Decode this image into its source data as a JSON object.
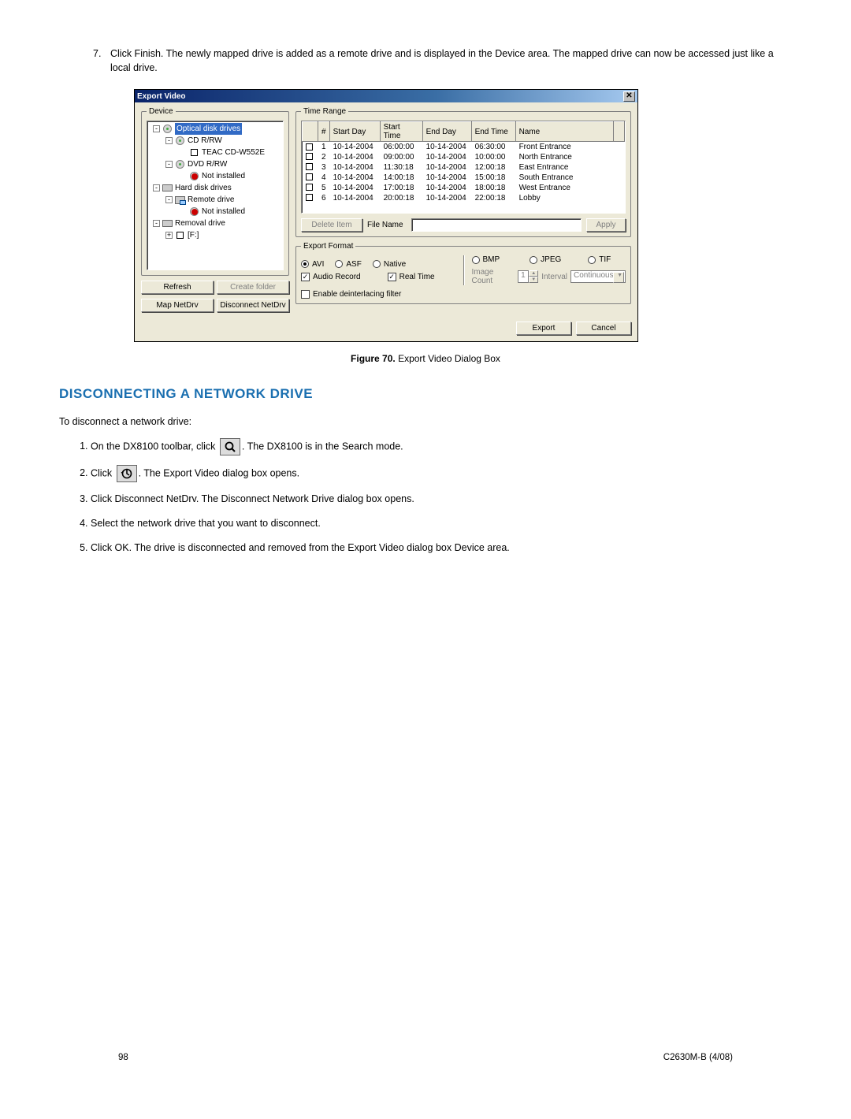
{
  "top_step": {
    "num": "7.",
    "text": "Click Finish. The newly mapped drive is added as a remote drive and is displayed in the Device area. The mapped drive can now be accessed just like a local drive."
  },
  "dialog": {
    "title": "Export Video",
    "group_device": "Device",
    "group_time": "Time Range",
    "group_format": "Export Format",
    "tree": [
      {
        "indent": 0,
        "tw": "-",
        "icon": "disc",
        "label": "Optical disk drives",
        "sel": true
      },
      {
        "indent": 1,
        "tw": "-",
        "icon": "disc",
        "label": "CD R/RW"
      },
      {
        "indent": 2,
        "tw": "",
        "icon": "sq",
        "label": "TEAC    CD-W552E"
      },
      {
        "indent": 1,
        "tw": "-",
        "icon": "disc",
        "label": "DVD R/RW"
      },
      {
        "indent": 2,
        "tw": "",
        "icon": "discred",
        "label": "Not installed"
      },
      {
        "indent": 0,
        "tw": "-",
        "icon": "hdd",
        "label": "Hard disk drives"
      },
      {
        "indent": 1,
        "tw": "-",
        "icon": "net",
        "label": "Remote drive"
      },
      {
        "indent": 2,
        "tw": "",
        "icon": "discred",
        "label": "Not installed"
      },
      {
        "indent": 0,
        "tw": "-",
        "icon": "hdd",
        "label": "Removal drive"
      },
      {
        "indent": 1,
        "tw": "+",
        "icon": "sq",
        "label": "[F:]"
      }
    ],
    "btn_refresh": "Refresh",
    "btn_create": "Create folder",
    "btn_map": "Map NetDrv",
    "btn_disc": "Disconnect NetDrv",
    "table": {
      "headers": [
        "#",
        "Start Day",
        "Start Time",
        "End Day",
        "End Time",
        "Name"
      ],
      "rows": [
        [
          "1",
          "10-14-2004",
          "06:00:00",
          "10-14-2004",
          "06:30:00",
          "Front Entrance"
        ],
        [
          "2",
          "10-14-2004",
          "09:00:00",
          "10-14-2004",
          "10:00:00",
          "North Entrance"
        ],
        [
          "3",
          "10-14-2004",
          "11:30:18",
          "10-14-2004",
          "12:00:18",
          "East Entrance"
        ],
        [
          "4",
          "10-14-2004",
          "14:00:18",
          "10-14-2004",
          "15:00:18",
          "South Entrance"
        ],
        [
          "5",
          "10-14-2004",
          "17:00:18",
          "10-14-2004",
          "18:00:18",
          "West Entrance"
        ],
        [
          "6",
          "10-14-2004",
          "20:00:18",
          "10-14-2004",
          "22:00:18",
          "Lobby"
        ]
      ]
    },
    "btn_delete": "Delete Item",
    "lbl_file": "File Name",
    "btn_apply": "Apply",
    "fmt": {
      "avi": "AVI",
      "asf": "ASF",
      "native": "Native",
      "bmp": "BMP",
      "jpeg": "JPEG",
      "tif": "TIF",
      "audio": "Audio Record",
      "real": "Real Time",
      "imgcount": "Image Count",
      "imgcount_v": "1",
      "interval": "Interval",
      "interval_v": "Continuous",
      "deint": "Enable deinterlacing filter"
    },
    "btn_export": "Export",
    "btn_cancel": "Cancel"
  },
  "caption": {
    "bold": "Figure 70.",
    "rest": "  Export Video Dialog Box"
  },
  "section_title": "DISCONNECTING A NETWORK DRIVE",
  "intro": "To disconnect a network drive:",
  "steps": [
    {
      "pre": "On the DX8100 toolbar, click ",
      "icon": "search",
      "post": ". The DX8100 is in the Search mode."
    },
    {
      "pre": "Click ",
      "icon": "export",
      "post": ". The Export Video dialog box opens."
    },
    {
      "text": "Click Disconnect NetDrv. The Disconnect Network Drive dialog box opens."
    },
    {
      "text": "Select the network drive that you want to disconnect."
    },
    {
      "text": "Click OK. The drive is disconnected and removed from the Export Video dialog box Device area."
    }
  ],
  "footer": {
    "page": "98",
    "doc": "C2630M-B (4/08)"
  }
}
